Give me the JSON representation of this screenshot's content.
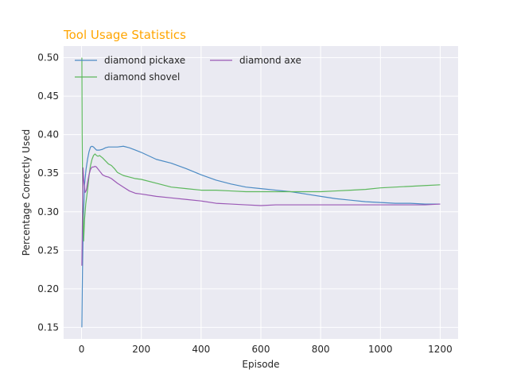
{
  "chart_data": {
    "type": "line",
    "title": "Tool Usage Statistics",
    "title_color": "#FFA500",
    "xlabel": "Episode",
    "ylabel": "Percentage Correctly Used",
    "xlim": [
      -60,
      1260
    ],
    "ylim": [
      0.135,
      0.515
    ],
    "xticks": [
      0,
      200,
      400,
      600,
      800,
      1000,
      1200
    ],
    "yticks": [
      0.15,
      0.2,
      0.25,
      0.3,
      0.35,
      0.4,
      0.45,
      0.5
    ],
    "xtick_labels": [
      "0",
      "200",
      "400",
      "600",
      "800",
      "1000",
      "1200"
    ],
    "ytick_labels": [
      "0.15",
      "0.20",
      "0.25",
      "0.30",
      "0.35",
      "0.40",
      "0.45",
      "0.50"
    ],
    "grid": true,
    "background": "#EAEAF2",
    "legend_position": "top-left",
    "series": [
      {
        "name": "diamond pickaxe",
        "color": "#4C8BC4",
        "x": [
          1,
          3,
          6,
          10,
          15,
          20,
          25,
          30,
          35,
          40,
          45,
          50,
          55,
          60,
          70,
          80,
          90,
          100,
          120,
          140,
          160,
          180,
          200,
          250,
          300,
          350,
          400,
          450,
          500,
          550,
          600,
          650,
          700,
          750,
          800,
          850,
          900,
          950,
          1000,
          1050,
          1100,
          1150,
          1200
        ],
        "y": [
          0.15,
          0.22,
          0.29,
          0.335,
          0.355,
          0.368,
          0.378,
          0.384,
          0.385,
          0.384,
          0.382,
          0.38,
          0.38,
          0.38,
          0.381,
          0.383,
          0.384,
          0.384,
          0.384,
          0.385,
          0.383,
          0.38,
          0.377,
          0.368,
          0.363,
          0.356,
          0.348,
          0.341,
          0.336,
          0.332,
          0.33,
          0.328,
          0.326,
          0.323,
          0.32,
          0.317,
          0.315,
          0.313,
          0.312,
          0.311,
          0.311,
          0.31,
          0.31
        ]
      },
      {
        "name": "diamond shovel",
        "color": "#5DB85D",
        "x": [
          1,
          2,
          4,
          7,
          10,
          14,
          18,
          22,
          26,
          30,
          35,
          40,
          45,
          50,
          55,
          60,
          70,
          80,
          90,
          100,
          110,
          120,
          140,
          160,
          180,
          200,
          250,
          300,
          350,
          400,
          450,
          500,
          550,
          600,
          650,
          700,
          750,
          800,
          850,
          900,
          950,
          1000,
          1050,
          1100,
          1150,
          1200
        ],
        "y": [
          0.5,
          0.4,
          0.31,
          0.262,
          0.29,
          0.31,
          0.322,
          0.335,
          0.35,
          0.36,
          0.368,
          0.373,
          0.375,
          0.373,
          0.372,
          0.373,
          0.37,
          0.366,
          0.362,
          0.36,
          0.356,
          0.351,
          0.347,
          0.345,
          0.343,
          0.342,
          0.337,
          0.332,
          0.33,
          0.328,
          0.328,
          0.327,
          0.326,
          0.326,
          0.326,
          0.326,
          0.326,
          0.326,
          0.327,
          0.328,
          0.329,
          0.331,
          0.332,
          0.333,
          0.334,
          0.335
        ]
      },
      {
        "name": "diamond axe",
        "color": "#9B59B6",
        "x": [
          1,
          3,
          5,
          8,
          12,
          16,
          20,
          25,
          30,
          35,
          40,
          45,
          50,
          60,
          70,
          80,
          90,
          100,
          120,
          140,
          160,
          180,
          200,
          250,
          300,
          350,
          400,
          450,
          500,
          550,
          600,
          650,
          700,
          750,
          800,
          850,
          900,
          950,
          1000,
          1050,
          1100,
          1150,
          1200
        ],
        "y": [
          0.23,
          0.3,
          0.357,
          0.338,
          0.325,
          0.328,
          0.338,
          0.348,
          0.355,
          0.358,
          0.358,
          0.359,
          0.358,
          0.353,
          0.348,
          0.346,
          0.345,
          0.343,
          0.337,
          0.332,
          0.327,
          0.324,
          0.323,
          0.32,
          0.318,
          0.316,
          0.314,
          0.311,
          0.31,
          0.309,
          0.308,
          0.309,
          0.309,
          0.309,
          0.309,
          0.309,
          0.309,
          0.309,
          0.309,
          0.309,
          0.309,
          0.309,
          0.31
        ]
      }
    ]
  }
}
